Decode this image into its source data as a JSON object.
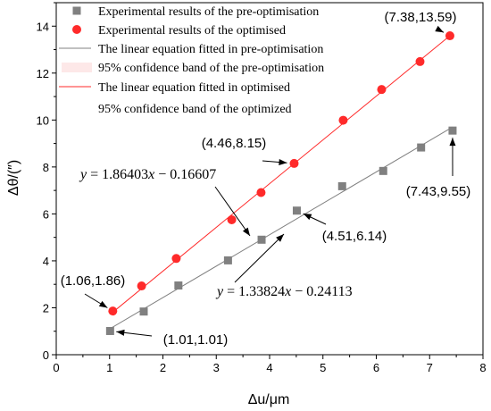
{
  "chart_data": {
    "type": "scatter",
    "xlabel": "Δu/μm",
    "ylabel": "Δθ/(″)",
    "xlim": [
      0,
      8
    ],
    "ylim": [
      0,
      15
    ],
    "xticks": [
      0,
      1,
      2,
      3,
      4,
      5,
      6,
      7,
      8
    ],
    "yticks": [
      0,
      2,
      4,
      6,
      8,
      10,
      12,
      14
    ],
    "grid": false,
    "legend_position": "top-left",
    "series": [
      {
        "name": "Experimental results of the pre-optimisation",
        "marker": "square",
        "color": "#808080",
        "x": [
          1.01,
          1.64,
          2.29,
          3.22,
          3.85,
          4.51,
          5.36,
          6.13,
          6.84,
          7.43
        ],
        "y": [
          1.01,
          1.84,
          2.95,
          4.02,
          4.9,
          6.14,
          7.18,
          7.83,
          8.83,
          9.55
        ]
      },
      {
        "name": "Experimental results of the optimised",
        "marker": "circle",
        "color": "#ff2a2a",
        "x": [
          1.06,
          1.6,
          2.25,
          3.29,
          3.84,
          4.46,
          5.38,
          6.1,
          6.82,
          7.38
        ],
        "y": [
          1.86,
          2.93,
          4.1,
          5.75,
          6.91,
          8.15,
          9.99,
          11.3,
          12.49,
          13.59
        ]
      }
    ],
    "fits": [
      {
        "name": "The linear equation fitted in pre-optimisation",
        "color": "#808080",
        "slope": 1.33824,
        "intercept": -0.24113,
        "x_range": [
          1.01,
          7.43
        ]
      },
      {
        "name": "The linear equation fitted in optimised",
        "color": "#ff2a2a",
        "slope": 1.86403,
        "intercept": -0.16607,
        "x_range": [
          1.06,
          7.38
        ]
      }
    ],
    "bands": [
      {
        "name": "95% confidence band of the pre-optimisation",
        "color": "#fde8e8"
      },
      {
        "name": "95% confidence band of the optimized",
        "color": "#ffffff"
      }
    ],
    "equations": {
      "optimised": "y=1.86403x−0.16607",
      "pre": "y=1.33824x−0.24113"
    },
    "annotations": [
      {
        "text": "(7.38,13.59)",
        "x": 7.38,
        "y": 13.59
      },
      {
        "text": "(4.46,8.15)",
        "x": 4.46,
        "y": 8.15
      },
      {
        "text": "(1.06,1.86)",
        "x": 1.06,
        "y": 1.86
      },
      {
        "text": "(7.43,9.55)",
        "x": 7.43,
        "y": 9.55
      },
      {
        "text": "(4.51,6.14)",
        "x": 4.51,
        "y": 6.14
      },
      {
        "text": "(1.01,1.01)",
        "x": 1.01,
        "y": 1.01
      }
    ]
  }
}
